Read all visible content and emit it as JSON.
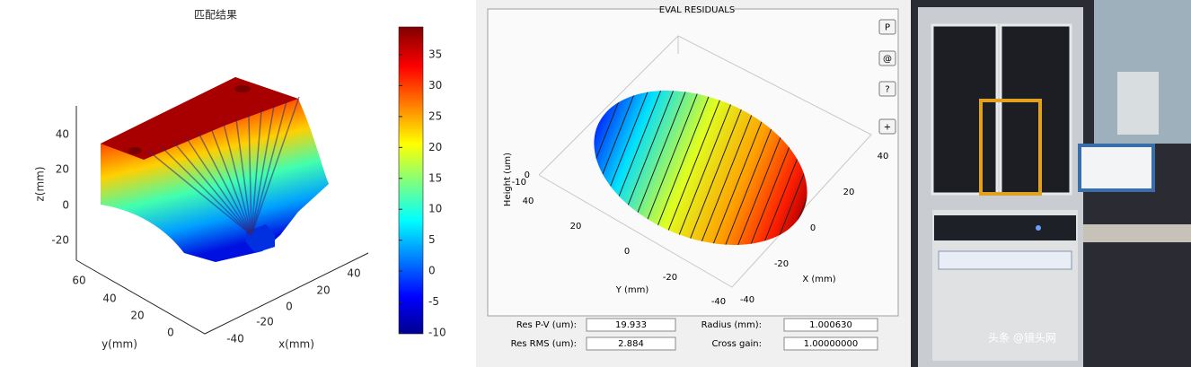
{
  "left_plot": {
    "title": "匹配结果",
    "z_label": "z(mm)",
    "y_label": "y(mm)",
    "x_label": "x(mm)",
    "z_ticks": [
      "40",
      "20",
      "0",
      "-20"
    ],
    "y_ticks": [
      "60",
      "40",
      "20",
      "0"
    ],
    "x_ticks": [
      "-40",
      "-20",
      "0",
      "20",
      "40"
    ],
    "colorbar_ticks": [
      "35",
      "30",
      "25",
      "20",
      "15",
      "10",
      "5",
      "0",
      "-5",
      "-10"
    ]
  },
  "residuals_panel": {
    "title": "EVAL RESIDUALS",
    "buttons": [
      "P",
      "@",
      "?",
      "+"
    ],
    "height_label": "Height (um)",
    "height_ticks": [
      "0",
      "-10"
    ],
    "y_label": "Y (mm)",
    "y_ticks": [
      "40",
      "20",
      "0",
      "-20",
      "-40"
    ],
    "x_label": "X (mm)",
    "x_ticks": [
      "40",
      "20",
      "0",
      "-20",
      "-40"
    ],
    "fields": [
      {
        "label": "Res P-V (um):",
        "value": "19.933"
      },
      {
        "label": "Res RMS (um):",
        "value": "2.884"
      },
      {
        "label": "Radius (mm):",
        "value": "1.000630"
      },
      {
        "label": "Cross gain:",
        "value": "1.00000000"
      }
    ]
  },
  "photo": {
    "watermark": "头条 @镜头网"
  }
}
